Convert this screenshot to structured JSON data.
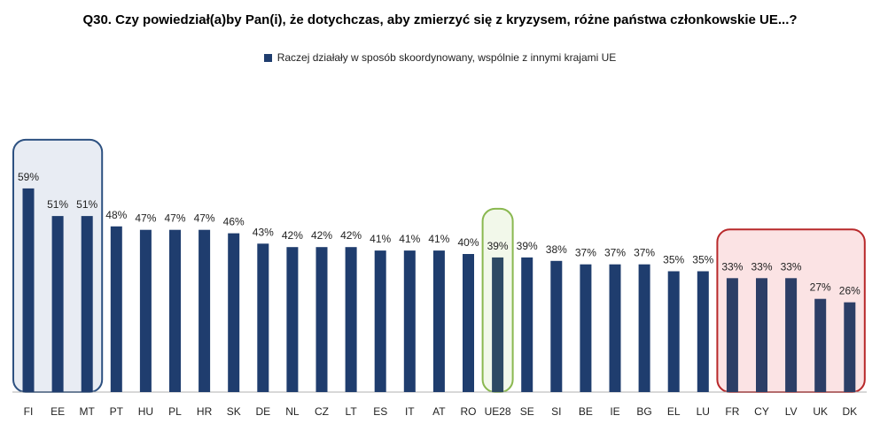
{
  "chart_data": {
    "type": "bar",
    "title": "Q30. Czy powiedział(a)by Pan(i), że dotychczas, aby zmierzyć się z kryzysem, różne państwa członkowskie UE...?",
    "xlabel": "",
    "ylabel": "",
    "ylim": [
      0,
      70
    ],
    "grid": false,
    "legend_position": "top",
    "categories": [
      "FI",
      "EE",
      "MT",
      "PT",
      "HU",
      "PL",
      "HR",
      "SK",
      "DE",
      "NL",
      "CZ",
      "LT",
      "ES",
      "IT",
      "AT",
      "RO",
      "UE28",
      "SE",
      "SI",
      "BE",
      "IE",
      "BG",
      "EL",
      "LU",
      "FR",
      "CY",
      "LV",
      "UK",
      "DK"
    ],
    "series": [
      {
        "name": "Raczej działały w sposób skoordynowany, wspólnie z innymi krajami UE",
        "values": [
          59,
          51,
          51,
          48,
          47,
          47,
          47,
          46,
          43,
          42,
          42,
          42,
          41,
          41,
          41,
          40,
          39,
          39,
          38,
          37,
          37,
          37,
          35,
          35,
          33,
          33,
          33,
          27,
          26
        ],
        "labels": [
          "59%",
          "51%",
          "51%",
          "48%",
          "47%",
          "47%",
          "47%",
          "46%",
          "43%",
          "42%",
          "42%",
          "42%",
          "41%",
          "41%",
          "41%",
          "40%",
          "39%",
          "39%",
          "38%",
          "37%",
          "37%",
          "37%",
          "35%",
          "35%",
          "33%",
          "33%",
          "33%",
          "27%",
          "26%"
        ]
      }
    ],
    "highlight_groups": [
      {
        "from": 0,
        "to": 2,
        "border": "#2d5181",
        "fill": "#e8ecf3"
      },
      {
        "from": 16,
        "to": 16,
        "border": "#8ab850",
        "fill": "#f2f8ea"
      },
      {
        "from": 24,
        "to": 28,
        "border": "#b8282a",
        "fill": "#fbe3e4"
      }
    ],
    "colors": {
      "bar": "#1f3d6e",
      "bar_highlight_red": "#2c3e66",
      "bar_highlight_green": "#2e4a64"
    }
  }
}
